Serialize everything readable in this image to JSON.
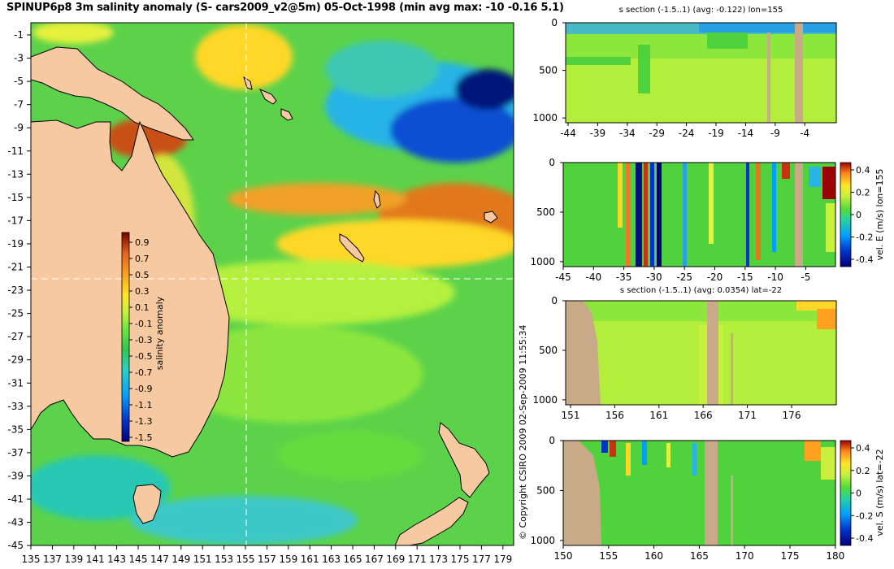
{
  "title": "SPINUP6p8 3m salinity anomaly (S- cars2009_v2@5m) 05-Oct-1998 (min avg max: -10 -0.16 5.1)",
  "copyright": "© Copyright CSIRO 2009   02-Sep-2009 11:55:34",
  "map": {
    "lon_ticks": [
      "135",
      "137",
      "139",
      "141",
      "143",
      "145",
      "147",
      "149",
      "151",
      "153",
      "155",
      "157",
      "159",
      "161",
      "163",
      "165",
      "167",
      "169",
      "171",
      "173",
      "175",
      "177",
      "179"
    ],
    "lat_ticks": [
      "-1",
      "-3",
      "-5",
      "-7",
      "-9",
      "-11",
      "-13",
      "-15",
      "-17",
      "-19",
      "-21",
      "-23",
      "-25",
      "-27",
      "-29",
      "-31",
      "-33",
      "-35",
      "-37",
      "-39",
      "-41",
      "-43",
      "-45"
    ],
    "section_lon": 155,
    "section_lat": -22,
    "colorbar": {
      "label": "salinity anomaly",
      "ticks": [
        "0.9",
        "0.7",
        "0.5",
        "0.3",
        "0.1",
        "-0.1",
        "-0.3",
        "-0.5",
        "-0.7",
        "-0.9",
        "-1.1",
        "-1.3",
        "-1.5"
      ]
    }
  },
  "panels": [
    {
      "title": "s section (-1.5..1) (avg: -0.122) lon=155",
      "x_ticks": [
        "-44",
        "-39",
        "-34",
        "-29",
        "-24",
        "-19",
        "-14",
        "-9",
        "-4"
      ],
      "y_ticks": [
        "0",
        "500",
        "1000"
      ]
    },
    {
      "title": "",
      "x_ticks": [
        "-45",
        "-40",
        "-35",
        "-30",
        "-25",
        "-20",
        "-15",
        "-10",
        "-5"
      ],
      "y_ticks": [
        "0",
        "500",
        "1000"
      ],
      "colorbar": {
        "label": "vel. E (m/s) lon=155",
        "ticks": [
          "0.4",
          "0.2",
          "0",
          "-0.2",
          "-0.4"
        ]
      }
    },
    {
      "title": "s section (-1.5..1) (avg: 0.0354) lat=-22",
      "x_ticks": [
        "151",
        "156",
        "161",
        "166",
        "171",
        "176"
      ],
      "y_ticks": [
        "0",
        "500",
        "1000"
      ]
    },
    {
      "title": "",
      "x_ticks": [
        "150",
        "155",
        "160",
        "165",
        "170",
        "175",
        "180"
      ],
      "y_ticks": [
        "0",
        "500",
        "1000"
      ],
      "colorbar": {
        "label": "vel. S (m/s) lat=-22",
        "ticks": [
          "0.4",
          "0.2",
          "0",
          "-0.2",
          "-0.4"
        ]
      }
    }
  ],
  "colors": {
    "land": "#f7c9a0",
    "section_land": "#c8aa88",
    "ocean_base": "#5cd24a",
    "colormap": [
      "#00007a",
      "#0033cc",
      "#00a0ff",
      "#28d2c8",
      "#30c850",
      "#6ee63c",
      "#c8f03c",
      "#ffe628",
      "#ffa01e",
      "#e1641e",
      "#a01e00",
      "#780000"
    ]
  }
}
